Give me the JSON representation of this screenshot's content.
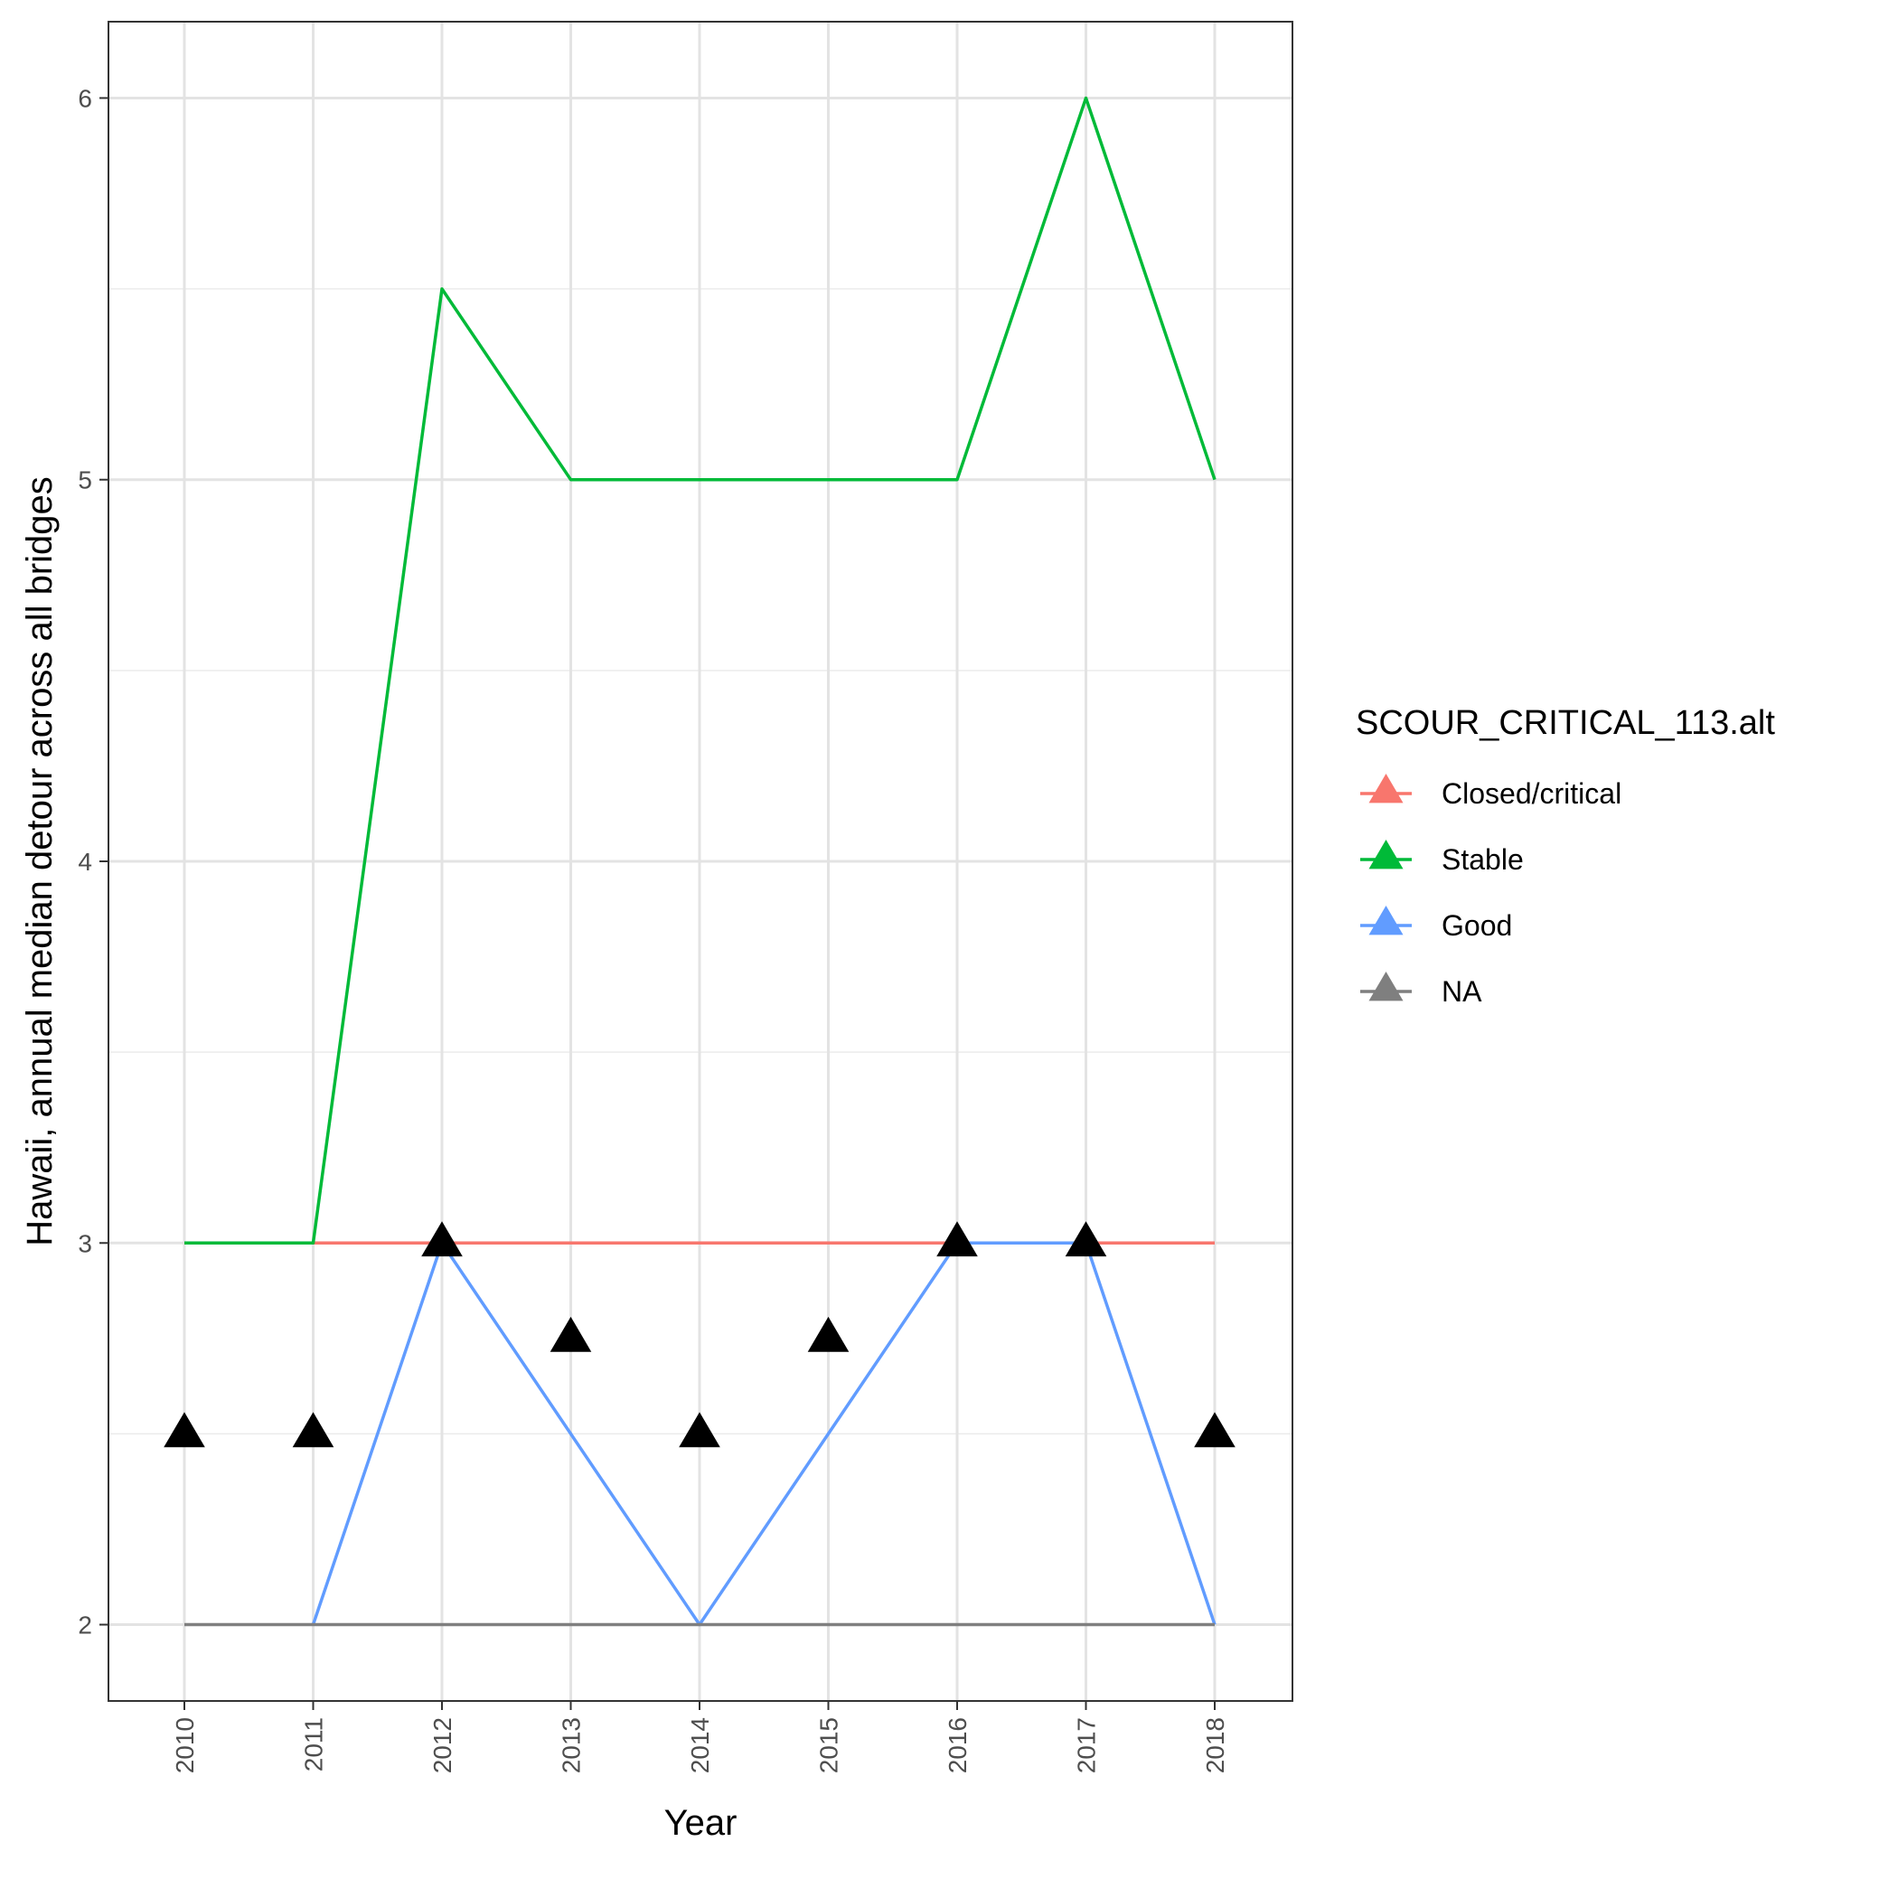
{
  "chart_data": {
    "type": "line",
    "xlabel": "Year",
    "ylabel": "Hawaii, annual median detour across all bridges",
    "x": [
      "2010",
      "2011",
      "2012",
      "2013",
      "2014",
      "2015",
      "2016",
      "2017",
      "2018"
    ],
    "yticks": [
      "2",
      "3",
      "4",
      "5",
      "6"
    ],
    "ylim": [
      1.8,
      6.2
    ],
    "grid": true,
    "legend": {
      "title": "SCOUR_CRITICAL_113.alt",
      "placement": "right"
    },
    "series": [
      {
        "name": "Closed/critical",
        "color": "#F8766D",
        "values": [
          null,
          3,
          3,
          3,
          3,
          3,
          3,
          3,
          3
        ]
      },
      {
        "name": "Stable",
        "color": "#00BA38",
        "values": [
          3,
          3,
          5.5,
          5,
          5,
          5,
          5,
          6,
          5
        ]
      },
      {
        "name": "Good",
        "color": "#619CFF",
        "values": [
          null,
          2,
          3,
          2.5,
          2,
          2.5,
          3,
          3,
          2
        ]
      },
      {
        "name": "NA",
        "color": "#7F7F7F",
        "values": [
          2,
          2,
          2,
          2,
          2,
          2,
          2,
          2,
          2
        ]
      }
    ],
    "points": {
      "marker": "triangle",
      "color": "#000000",
      "values": [
        2.5,
        2.5,
        3,
        2.75,
        2.5,
        2.75,
        3,
        3,
        2.5
      ]
    }
  }
}
